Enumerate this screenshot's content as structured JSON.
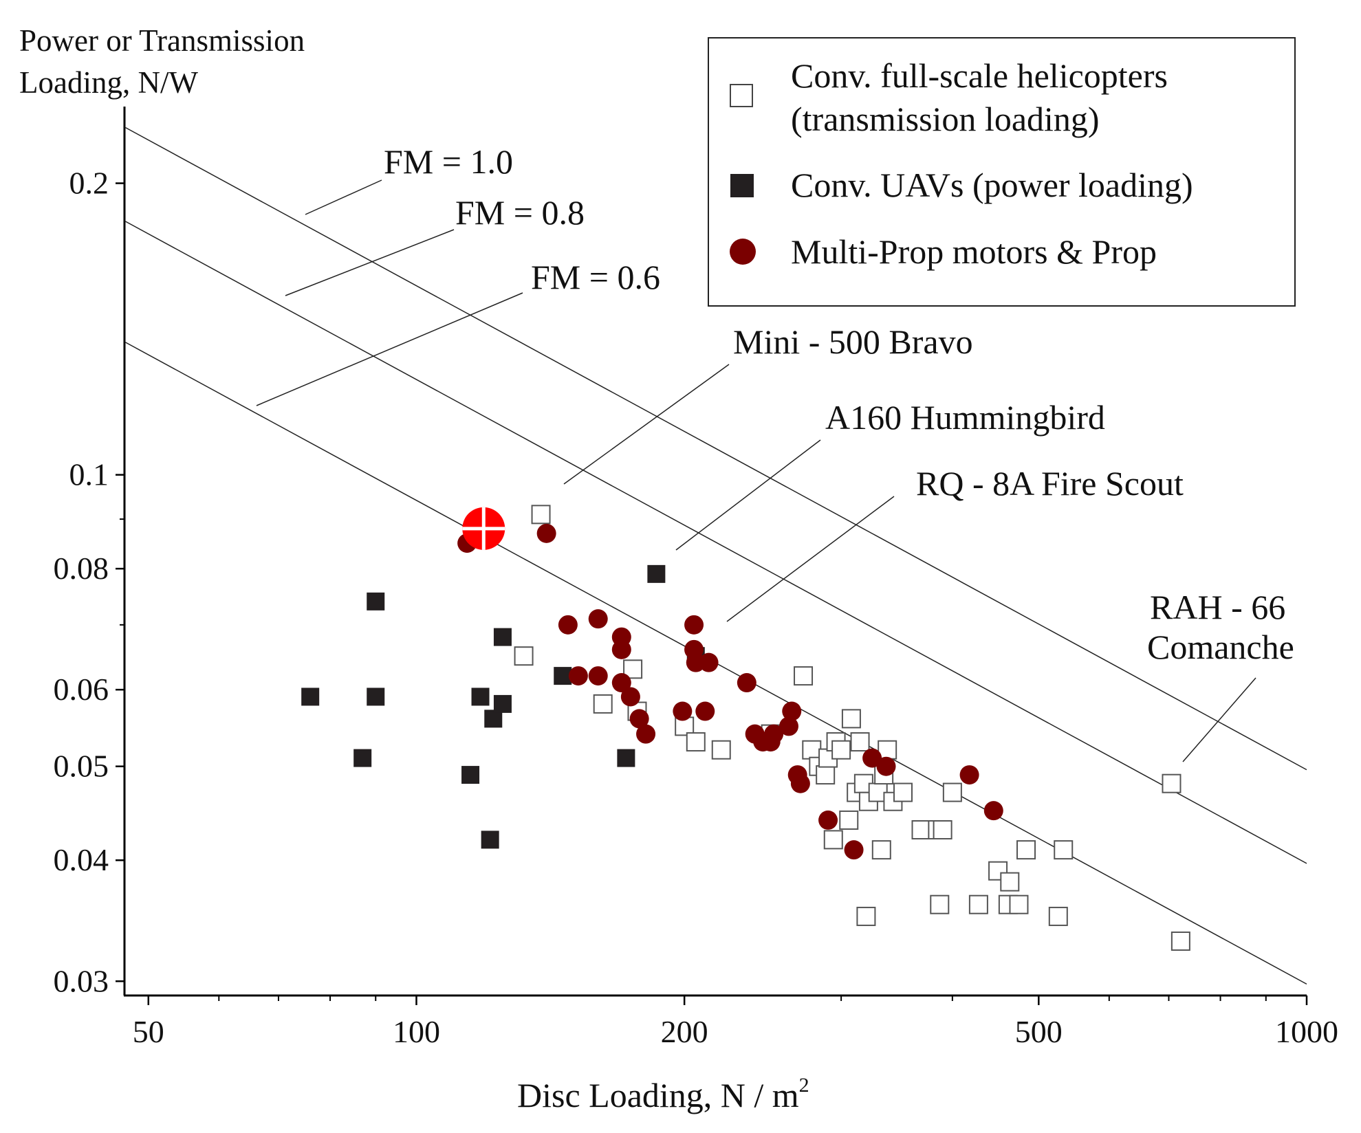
{
  "chart_data": {
    "type": "scatter",
    "x_scale": "log",
    "y_scale": "log",
    "xlim": [
      47,
      1000
    ],
    "ylim": [
      0.029,
      0.24
    ],
    "ylabel_lines": [
      "Power or Transmission",
      "Loading, N/W"
    ],
    "xlabel_main": "Disc Loading,   N / m",
    "xlabel_sup": "2",
    "x_ticks": [
      {
        "value": 50,
        "label": "50"
      },
      {
        "value": 100,
        "label": "100"
      },
      {
        "value": 200,
        "label": "200"
      },
      {
        "value": 500,
        "label": "500"
      },
      {
        "value": 1000,
        "label": "1000"
      }
    ],
    "x_minor_ticks": [
      60,
      70,
      80,
      90,
      300,
      400,
      600,
      700,
      800,
      900
    ],
    "y_ticks": [
      {
        "value": 0.03,
        "label": "0.03"
      },
      {
        "value": 0.04,
        "label": "0.04"
      },
      {
        "value": 0.05,
        "label": "0.05"
      },
      {
        "value": 0.06,
        "label": "0.06"
      },
      {
        "value": 0.08,
        "label": "0.08"
      },
      {
        "value": 0.1,
        "label": "0.1"
      },
      {
        "value": 0.2,
        "label": "0.2"
      }
    ],
    "y_minor_ticks": [
      0.07,
      0.09
    ],
    "fm_lines": [
      {
        "fm": 1.0,
        "label": "FM = 1.0",
        "start": [
          47,
          0.2286
        ],
        "end": [
          1000,
          0.0496
        ]
      },
      {
        "fm": 0.8,
        "label": "FM = 0.8",
        "start": [
          47,
          0.1829
        ],
        "end": [
          1000,
          0.0397
        ]
      },
      {
        "fm": 0.6,
        "label": "FM = 0.6",
        "start": [
          47,
          0.1372
        ],
        "end": [
          1000,
          0.0298
        ]
      }
    ],
    "annotations": [
      {
        "label": "Mini - 500 Bravo",
        "lines": [
          "Mini - 500 Bravo"
        ]
      },
      {
        "label": "A160 Hummingbird",
        "lines": [
          "A160 Hummingbird"
        ]
      },
      {
        "label": "RQ - 8A Fire Scout",
        "lines": [
          "RQ - 8A Fire Scout"
        ]
      },
      {
        "label": "RAH - 66 Comanche",
        "lines": [
          "RAH - 66",
          "Comanche"
        ]
      }
    ],
    "legend": {
      "position": "top-right",
      "entries": [
        {
          "marker": "open-square",
          "lines": [
            "Conv. full-scale helicopters",
            "(transmission loading)"
          ]
        },
        {
          "marker": "filled-square",
          "lines": [
            "Conv. UAVs (power loading)"
          ]
        },
        {
          "marker": "circle",
          "lines": [
            "Multi-Prop motors & Prop"
          ]
        }
      ]
    },
    "highlight_point": {
      "x": 119,
      "y": 0.088,
      "color": "#ff0000"
    },
    "series": [
      {
        "name": "Conv. full-scale helicopters (transmission loading)",
        "marker": "open-square",
        "points": [
          [
            138,
            0.091
          ],
          [
            132,
            0.065
          ],
          [
            162,
            0.058
          ],
          [
            175,
            0.063
          ],
          [
            177,
            0.057
          ],
          [
            200,
            0.055
          ],
          [
            206,
            0.053
          ],
          [
            220,
            0.052
          ],
          [
            250,
            0.054
          ],
          [
            272,
            0.062
          ],
          [
            278,
            0.052
          ],
          [
            283,
            0.05
          ],
          [
            288,
            0.049
          ],
          [
            290,
            0.051
          ],
          [
            296,
            0.053
          ],
          [
            300,
            0.052
          ],
          [
            306,
            0.044
          ],
          [
            308,
            0.056
          ],
          [
            312,
            0.047
          ],
          [
            315,
            0.053
          ],
          [
            318,
            0.048
          ],
          [
            322,
            0.046
          ],
          [
            330,
            0.047
          ],
          [
            335,
            0.049
          ],
          [
            338,
            0.052
          ],
          [
            343,
            0.046
          ],
          [
            352,
            0.047
          ],
          [
            369,
            0.043
          ],
          [
            385,
            0.043
          ],
          [
            390,
            0.043
          ],
          [
            400,
            0.047
          ],
          [
            294,
            0.042
          ],
          [
            333,
            0.041
          ],
          [
            320,
            0.035
          ],
          [
            387,
            0.036
          ],
          [
            428,
            0.036
          ],
          [
            450,
            0.039
          ],
          [
            462,
            0.036
          ],
          [
            464,
            0.038
          ],
          [
            475,
            0.036
          ],
          [
            484,
            0.041
          ],
          [
            533,
            0.041
          ],
          [
            526,
            0.035
          ],
          [
            705,
            0.048
          ],
          [
            722,
            0.033
          ]
        ]
      },
      {
        "name": "Conv. UAVs (power loading)",
        "marker": "filled-square",
        "points": [
          [
            76,
            0.059
          ],
          [
            87,
            0.051
          ],
          [
            90,
            0.074
          ],
          [
            90,
            0.059
          ],
          [
            115,
            0.049
          ],
          [
            118,
            0.059
          ],
          [
            121,
            0.042
          ],
          [
            122,
            0.056
          ],
          [
            125,
            0.068
          ],
          [
            125,
            0.058
          ],
          [
            146,
            0.062
          ],
          [
            172,
            0.051
          ],
          [
            186,
            0.079
          ],
          [
            206,
            0.065
          ]
        ]
      },
      {
        "name": "Multi-Prop motors & Prop",
        "marker": "circle",
        "points": [
          [
            114,
            0.085
          ],
          [
            140,
            0.087
          ],
          [
            148,
            0.07
          ],
          [
            152,
            0.062
          ],
          [
            160,
            0.071
          ],
          [
            160,
            0.062
          ],
          [
            170,
            0.068
          ],
          [
            170,
            0.066
          ],
          [
            170,
            0.061
          ],
          [
            174,
            0.059
          ],
          [
            178,
            0.056
          ],
          [
            181,
            0.054
          ],
          [
            199,
            0.057
          ],
          [
            205,
            0.07
          ],
          [
            205,
            0.066
          ],
          [
            206,
            0.064
          ],
          [
            211,
            0.057
          ],
          [
            213,
            0.064
          ],
          [
            235,
            0.061
          ],
          [
            240,
            0.054
          ],
          [
            245,
            0.053
          ],
          [
            250,
            0.053
          ],
          [
            252,
            0.054
          ],
          [
            262,
            0.055
          ],
          [
            264,
            0.057
          ],
          [
            268,
            0.049
          ],
          [
            270,
            0.048
          ],
          [
            290,
            0.044
          ],
          [
            310,
            0.041
          ],
          [
            325,
            0.051
          ],
          [
            337,
            0.05
          ],
          [
            418,
            0.049
          ],
          [
            445,
            0.045
          ]
        ]
      }
    ]
  }
}
